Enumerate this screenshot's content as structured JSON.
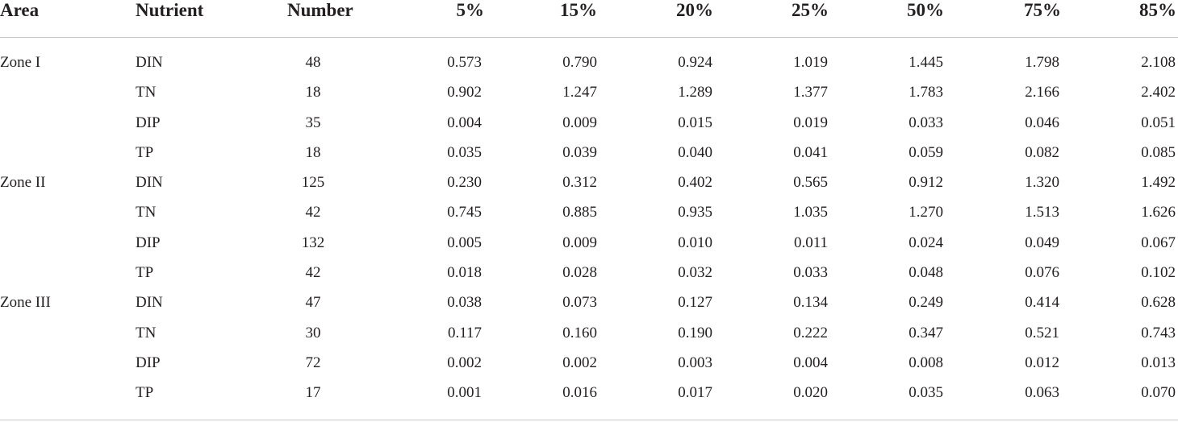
{
  "table": {
    "headers": [
      "Area",
      "Nutrient",
      "Number",
      "5%",
      "15%",
      "20%",
      "25%",
      "50%",
      "75%",
      "85%"
    ],
    "rows": [
      [
        "Zone I",
        "DIN",
        "48",
        "0.573",
        "0.790",
        "0.924",
        "1.019",
        "1.445",
        "1.798",
        "2.108"
      ],
      [
        "",
        "TN",
        "18",
        "0.902",
        "1.247",
        "1.289",
        "1.377",
        "1.783",
        "2.166",
        "2.402"
      ],
      [
        "",
        "DIP",
        "35",
        "0.004",
        "0.009",
        "0.015",
        "0.019",
        "0.033",
        "0.046",
        "0.051"
      ],
      [
        "",
        "TP",
        "18",
        "0.035",
        "0.039",
        "0.040",
        "0.041",
        "0.059",
        "0.082",
        "0.085"
      ],
      [
        "Zone II",
        "DIN",
        "125",
        "0.230",
        "0.312",
        "0.402",
        "0.565",
        "0.912",
        "1.320",
        "1.492"
      ],
      [
        "",
        "TN",
        "42",
        "0.745",
        "0.885",
        "0.935",
        "1.035",
        "1.270",
        "1.513",
        "1.626"
      ],
      [
        "",
        "DIP",
        "132",
        "0.005",
        "0.009",
        "0.010",
        "0.011",
        "0.024",
        "0.049",
        "0.067"
      ],
      [
        "",
        "TP",
        "42",
        "0.018",
        "0.028",
        "0.032",
        "0.033",
        "0.048",
        "0.076",
        "0.102"
      ],
      [
        "Zone III",
        "DIN",
        "47",
        "0.038",
        "0.073",
        "0.127",
        "0.134",
        "0.249",
        "0.414",
        "0.628"
      ],
      [
        "",
        "TN",
        "30",
        "0.117",
        "0.160",
        "0.190",
        "0.222",
        "0.347",
        "0.521",
        "0.743"
      ],
      [
        "",
        "DIP",
        "72",
        "0.002",
        "0.002",
        "0.003",
        "0.004",
        "0.008",
        "0.012",
        "0.013"
      ],
      [
        "",
        "TP",
        "17",
        "0.001",
        "0.016",
        "0.017",
        "0.020",
        "0.035",
        "0.063",
        "0.070"
      ]
    ]
  }
}
